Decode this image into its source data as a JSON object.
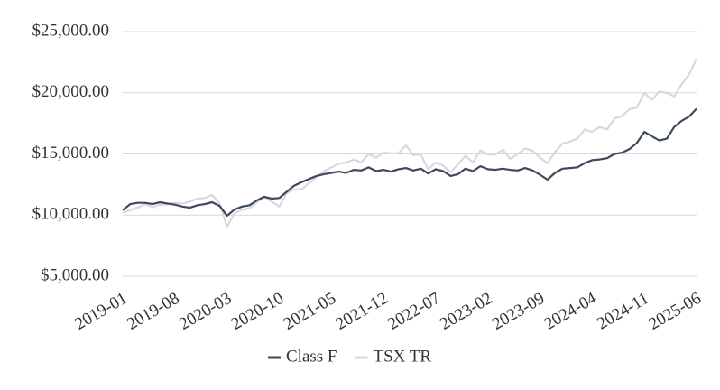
{
  "chart_data": {
    "type": "line",
    "categories": [
      "2019-01",
      null,
      null,
      null,
      null,
      null,
      null,
      "2019-08",
      null,
      null,
      null,
      null,
      null,
      null,
      "2020-03",
      null,
      null,
      null,
      null,
      null,
      null,
      "2020-10",
      null,
      null,
      null,
      null,
      null,
      null,
      "2021-05",
      null,
      null,
      null,
      null,
      null,
      null,
      "2021-12",
      null,
      null,
      null,
      null,
      null,
      null,
      "2022-07",
      null,
      null,
      null,
      null,
      null,
      null,
      "2023-02",
      null,
      null,
      null,
      null,
      null,
      null,
      "2023-09",
      null,
      null,
      null,
      null,
      null,
      null,
      "2024-04",
      null,
      null,
      null,
      null,
      null,
      null,
      "2024-11",
      null,
      null,
      null,
      null,
      null,
      null,
      "2025-06"
    ],
    "series": [
      {
        "name": "Class F",
        "color": "#3d4a5e",
        "values": [
          10400,
          10900,
          11000,
          11000,
          10900,
          11050,
          10950,
          10850,
          10700,
          10600,
          10800,
          10900,
          11050,
          10750,
          9950,
          10450,
          10700,
          10800,
          11200,
          11500,
          11350,
          11400,
          11900,
          12400,
          12700,
          12950,
          13200,
          13350,
          13450,
          13550,
          13450,
          13700,
          13650,
          13900,
          13600,
          13700,
          13550,
          13750,
          13850,
          13650,
          13800,
          13400,
          13750,
          13600,
          13200,
          13350,
          13800,
          13600,
          14000,
          13750,
          13700,
          13800,
          13700,
          13650,
          13850,
          13650,
          13300,
          12900,
          13450,
          13800,
          13850,
          13900,
          14250,
          14500,
          14550,
          14650,
          15000,
          15100,
          15400,
          15900,
          16800,
          16450,
          16100,
          16250,
          17200,
          17700,
          18050,
          18700
        ]
      },
      {
        "name": "TSX TR",
        "color": "#d9d9d9",
        "values": [
          10200,
          10400,
          10600,
          10900,
          10650,
          10850,
          10850,
          11000,
          10950,
          11100,
          11350,
          11400,
          11650,
          10950,
          9050,
          10150,
          10450,
          10550,
          11050,
          11450,
          11100,
          10700,
          11800,
          12100,
          12100,
          12600,
          13100,
          13600,
          13900,
          14200,
          14300,
          14550,
          14300,
          15000,
          14700,
          15100,
          15050,
          15050,
          15700,
          14900,
          14950,
          13750,
          14300,
          14050,
          13500,
          14150,
          14850,
          14300,
          15300,
          14950,
          14950,
          15350,
          14600,
          15000,
          15450,
          15250,
          14700,
          14250,
          15150,
          15850,
          16000,
          16250,
          17000,
          16800,
          17200,
          17000,
          17900,
          18100,
          18650,
          18800,
          20000,
          19400,
          20100,
          20000,
          19700,
          20700,
          21500,
          22750
        ]
      }
    ],
    "ylim": [
      5000,
      25000
    ],
    "yticks": [
      {
        "value": 5000,
        "label": "$5,000.00"
      },
      {
        "value": 10000,
        "label": "$10,000.00"
      },
      {
        "value": 15000,
        "label": "$15,000.00"
      },
      {
        "value": 20000,
        "label": "$20,000.00"
      },
      {
        "value": 25000,
        "label": "$25,000.00"
      }
    ],
    "grid": true,
    "legend": "bottom"
  }
}
